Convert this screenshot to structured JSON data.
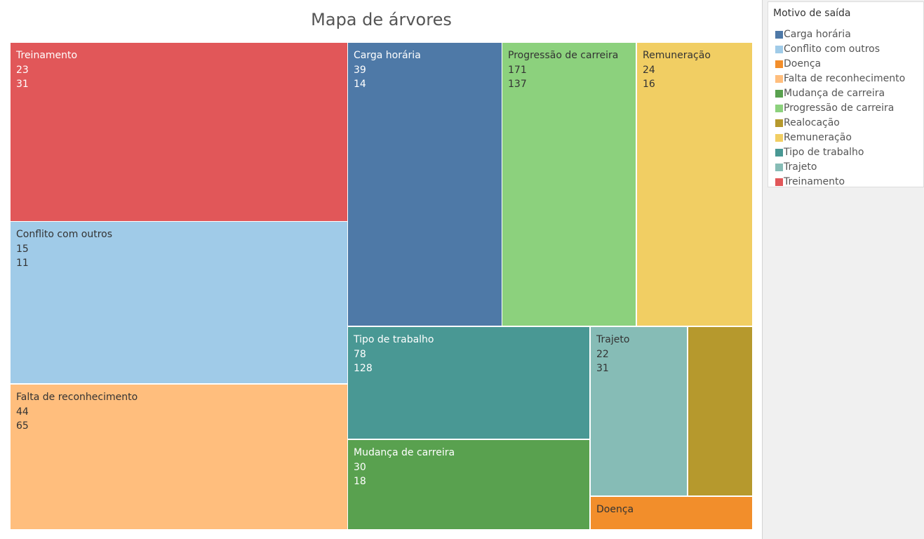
{
  "chart_data": {
    "type": "treemap",
    "title": "Mapa de árvores",
    "legend_title": "Motivo de saída",
    "legend_position": "right",
    "categories": [
      {
        "name": "Carga horária",
        "color": "#4e79a7",
        "values": [
          39,
          14
        ],
        "size": 53
      },
      {
        "name": "Conflito com outros",
        "color": "#a0cbe8",
        "values": [
          15,
          11
        ],
        "size": 26
      },
      {
        "name": "Doença",
        "color": "#f28e2b",
        "values": [],
        "size": 3
      },
      {
        "name": "Falta de reconhecimento",
        "color": "#ffbe7d",
        "values": [
          44,
          65
        ],
        "size": 109
      },
      {
        "name": "Mudança de carreira",
        "color": "#59a14f",
        "values": [
          30,
          18
        ],
        "size": 48
      },
      {
        "name": "Progressão de carreira",
        "color": "#8cd17d",
        "values": [
          171,
          137
        ],
        "size": 308
      },
      {
        "name": "Realocação",
        "color": "#b6992d",
        "values": [],
        "size": 6
      },
      {
        "name": "Remuneração",
        "color": "#f1ce63",
        "values": [
          24,
          16
        ],
        "size": 40
      },
      {
        "name": "Tipo de trabalho",
        "color": "#499894",
        "values": [
          78,
          128
        ],
        "size": 206
      },
      {
        "name": "Trajeto",
        "color": "#86bcb6",
        "values": [
          22,
          31
        ],
        "size": 53
      },
      {
        "name": "Treinamento",
        "color": "#e15759",
        "values": [
          23,
          31
        ],
        "size": 54
      }
    ]
  }
}
